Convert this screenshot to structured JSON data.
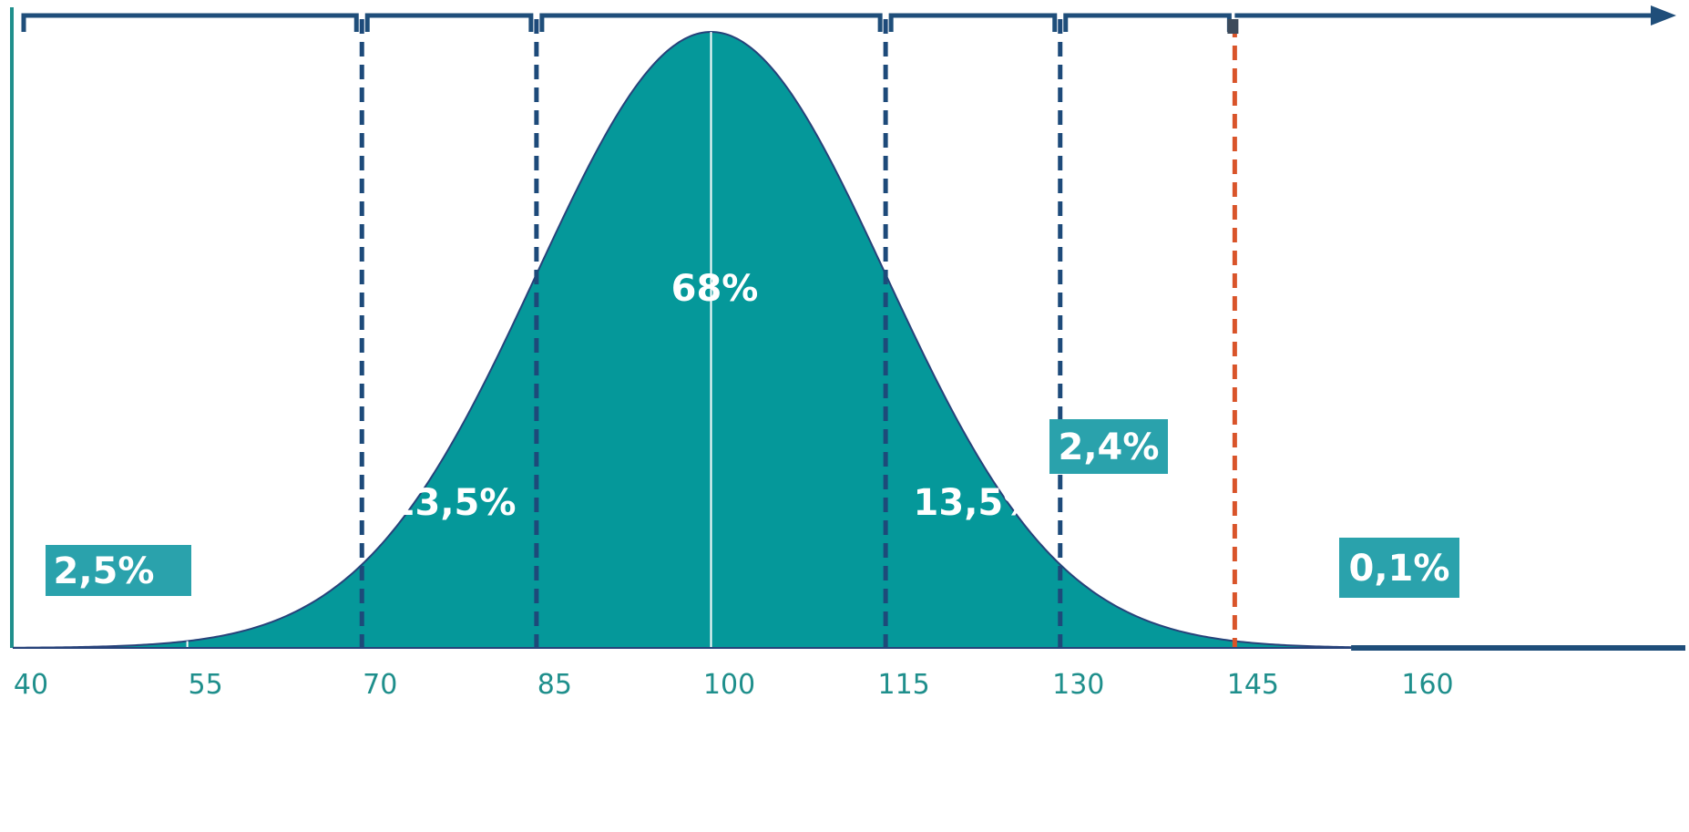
{
  "chart_data": {
    "type": "area",
    "title": "",
    "xlabel": "",
    "ylabel": "",
    "distribution": {
      "kind": "normal",
      "mean": 100,
      "sd": 15
    },
    "xlim": [
      40,
      160
    ],
    "ticks": [
      "40",
      "55",
      "70",
      "85",
      "100",
      "115",
      "130",
      "145",
      "160"
    ],
    "tick_values": [
      40,
      55,
      70,
      85,
      100,
      115,
      130,
      145,
      160
    ],
    "sd_boundaries": [
      70,
      85,
      115,
      130
    ],
    "threshold": 145,
    "bracket_boundaries": [
      40,
      70,
      85,
      115,
      130,
      145
    ],
    "regions": [
      {
        "label": "2,5%",
        "value": 2.5,
        "at": 55,
        "style": "box"
      },
      {
        "label": "13,5%",
        "value": 13.5,
        "at": 77.5,
        "style": "text"
      },
      {
        "label": "68%",
        "value": 68,
        "at": 100,
        "style": "text"
      },
      {
        "label": "13,5%",
        "value": 13.5,
        "at": 122.5,
        "style": "text"
      },
      {
        "label": "2,4%",
        "value": 2.4,
        "at": 137.5,
        "style": "box"
      },
      {
        "label": "0,1%",
        "value": 0.1,
        "at": 152.5,
        "style": "box"
      }
    ],
    "colors": {
      "fill": "#05989a",
      "outline": "#27427a",
      "sd_lines": "#1d4a7a",
      "threshold_line": "#d9542a",
      "axis_bar": "#1f4e7a",
      "label_box": "#2aa2ac",
      "tick_text": "#1f8f8c",
      "y_axis": "#1f8f8c"
    }
  }
}
